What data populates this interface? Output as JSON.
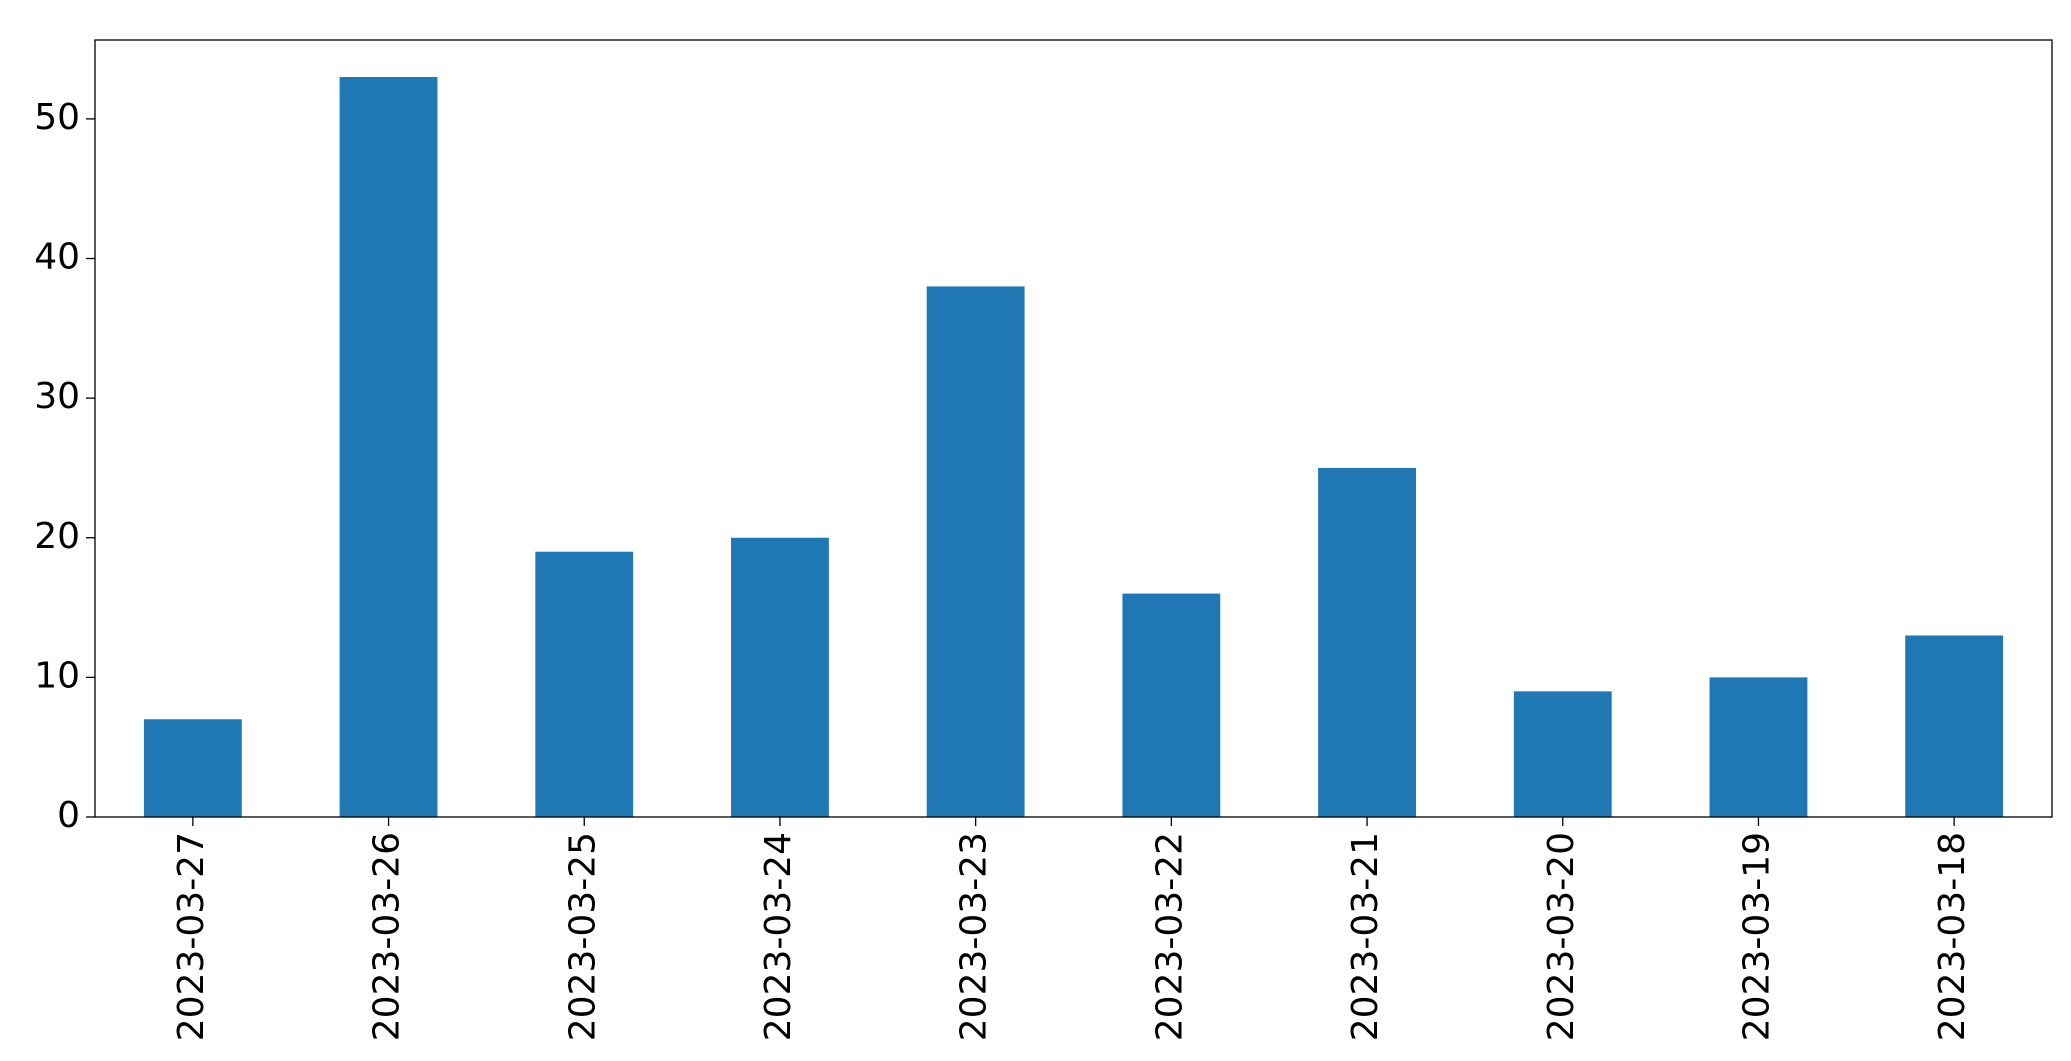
{
  "chart_data": {
    "type": "bar",
    "categories": [
      "2023-03-27",
      "2023-03-26",
      "2023-03-25",
      "2023-03-24",
      "2023-03-23",
      "2023-03-22",
      "2023-03-21",
      "2023-03-20",
      "2023-03-19",
      "2023-03-18"
    ],
    "values": [
      7,
      53,
      19,
      20,
      38,
      16,
      25,
      9,
      10,
      13
    ],
    "color": "#1f77b4",
    "ylim": [
      0,
      55.65
    ],
    "yticks": [
      0,
      10,
      20,
      30,
      40,
      50
    ],
    "grid": false
  }
}
